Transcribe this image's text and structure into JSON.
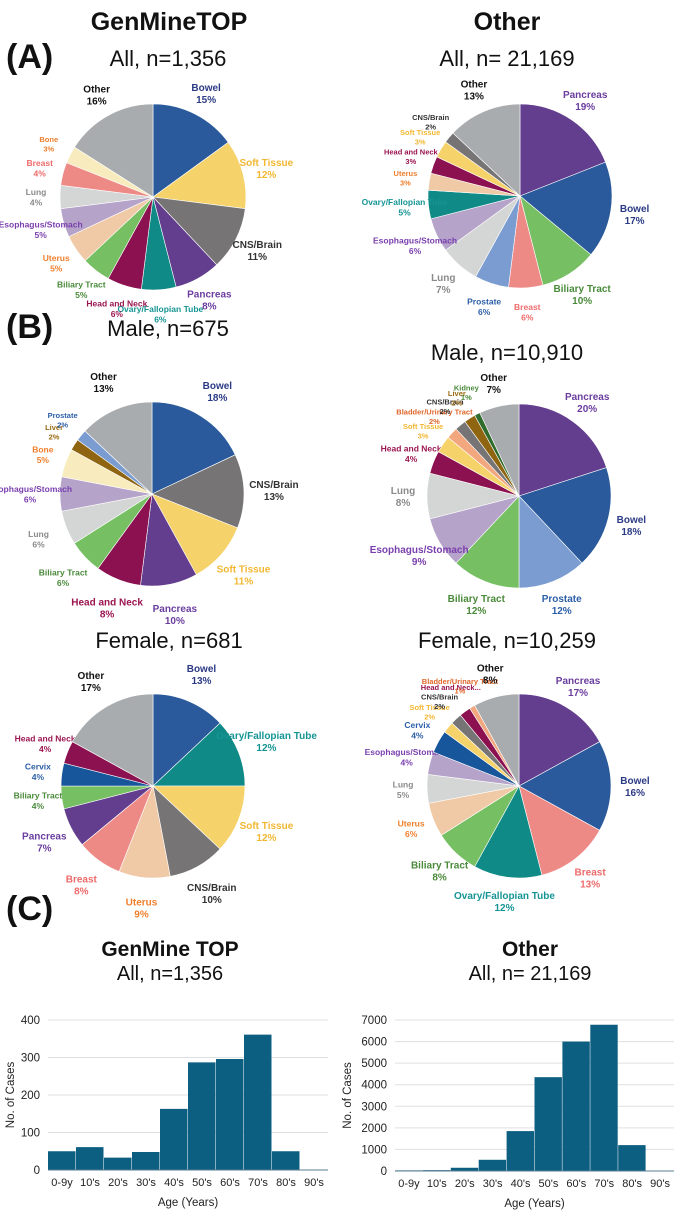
{
  "headers": {
    "left": "GenMineTOP",
    "right": "Other",
    "panel_a": "(A)",
    "panel_b": "(B)",
    "panel_c": "(C)"
  },
  "colors": {
    "Bowel": "#2a5a9b",
    "Soft Tissue": "#f5d36a",
    "CNS/Brain": "#767474",
    "Pancreas": "#633d8e",
    "Ovary/Fallopian Tube": "#0f8a86",
    "Head and Neck": "#8b1150",
    "Biliary Tract": "#76bf63",
    "Uterus": "#f0c9a6",
    "Esophagus/Stomach": "#b5a3c9",
    "Lung": "#d4d5d5",
    "Breast": "#ee8a86",
    "Bone": "#f8ecbe",
    "Other": "#a9acae",
    "Prostate": "#7a9cd0",
    "Liver": "#8f6511",
    "Kidney": "#2e6b2c",
    "Bladder/Urinary Tract": "#f2a77e",
    "Cervix": "#17569a",
    "bar": "#0d5f82"
  },
  "label_colors": {
    "Bowel": "#2c3b85",
    "Soft Tissue": "#f2b732",
    "CNS/Brain": "#333333",
    "Pancreas": "#6a3d9e",
    "Ovary/Fallopian Tube": "#169494",
    "Head and Neck": "#9a1550",
    "Biliary Tract": "#4a8a3a",
    "Uterus": "#ef7f2c",
    "Esophagus/Stomach": "#7a3fae",
    "Lung": "#8a8a8a",
    "Breast": "#ee6a6a",
    "Bone": "#ef7f2c",
    "Other": "#111111",
    "Prostate": "#2c5fa8",
    "Liver": "#9a6a12",
    "Kidney": "#4a8a3a",
    "Bladder/Urinary Tract": "#e0662a",
    "Cervix": "#2c5fa8"
  },
  "chart_data": [
    {
      "type": "pie",
      "id": "genmine-all",
      "title": "All, n=1,356",
      "slices": [
        {
          "label": "Bowel",
          "value": 15
        },
        {
          "label": "Soft Tissue",
          "value": 12
        },
        {
          "label": "CNS/Brain",
          "value": 11
        },
        {
          "label": "Pancreas",
          "value": 8
        },
        {
          "label": "Ovary/Fallopian Tube",
          "value": 6
        },
        {
          "label": "Head and Neck",
          "value": 6
        },
        {
          "label": "Biliary Tract",
          "value": 5
        },
        {
          "label": "Uterus",
          "value": 5
        },
        {
          "label": "Esophagus/Stomach",
          "value": 5
        },
        {
          "label": "Lung",
          "value": 4
        },
        {
          "label": "Breast",
          "value": 4
        },
        {
          "label": "Bone",
          "value": 3
        },
        {
          "label": "Other",
          "value": 16
        }
      ]
    },
    {
      "type": "pie",
      "id": "other-all",
      "title": "All, n= 21,169",
      "slices": [
        {
          "label": "Pancreas",
          "value": 19
        },
        {
          "label": "Bowel",
          "value": 17
        },
        {
          "label": "Biliary Tract",
          "value": 10
        },
        {
          "label": "Breast",
          "value": 6
        },
        {
          "label": "Prostate",
          "value": 6
        },
        {
          "label": "Lung",
          "value": 7
        },
        {
          "label": "Esophagus/Stomach",
          "value": 6
        },
        {
          "label": "Ovary/Fallopian Tube",
          "value": 5
        },
        {
          "label": "Uterus",
          "value": 3
        },
        {
          "label": "Head and Neck",
          "value": 3
        },
        {
          "label": "Soft Tissue",
          "value": 3
        },
        {
          "label": "CNS/Brain",
          "value": 2
        },
        {
          "label": "Other",
          "value": 13
        }
      ]
    },
    {
      "type": "pie",
      "id": "genmine-male",
      "title": "Male, n=675",
      "slices": [
        {
          "label": "Bowel",
          "value": 18
        },
        {
          "label": "CNS/Brain",
          "value": 13
        },
        {
          "label": "Soft Tissue",
          "value": 11
        },
        {
          "label": "Pancreas",
          "value": 10
        },
        {
          "label": "Head and Neck",
          "value": 8
        },
        {
          "label": "Biliary Tract",
          "value": 6
        },
        {
          "label": "Lung",
          "value": 6
        },
        {
          "label": "Esophagus/Stomach",
          "value": 6
        },
        {
          "label": "Bone",
          "value": 5
        },
        {
          "label": "Liver",
          "value": 2
        },
        {
          "label": "Prostate",
          "value": 2
        },
        {
          "label": "Other",
          "value": 13
        }
      ]
    },
    {
      "type": "pie",
      "id": "other-male",
      "title": "Male, n=10,910",
      "slices": [
        {
          "label": "Pancreas",
          "value": 20
        },
        {
          "label": "Bowel",
          "value": 18
        },
        {
          "label": "Prostate",
          "value": 12
        },
        {
          "label": "Biliary Tract",
          "value": 12
        },
        {
          "label": "Esophagus/Stomach",
          "value": 9
        },
        {
          "label": "Lung",
          "value": 8
        },
        {
          "label": "Head and Neck",
          "value": 4
        },
        {
          "label": "Soft Tissue",
          "value": 3
        },
        {
          "label": "Bladder/Urinary Tract",
          "value": 2
        },
        {
          "label": "CNS/Brain",
          "value": 2
        },
        {
          "label": "Liver",
          "value": 2
        },
        {
          "label": "Kidney",
          "value": 1
        },
        {
          "label": "Other",
          "value": 7
        }
      ]
    },
    {
      "type": "pie",
      "id": "genmine-female",
      "title": "Female, n=681",
      "slices": [
        {
          "label": "Bowel",
          "value": 13
        },
        {
          "label": "Ovary/Fallopian Tube",
          "value": 12
        },
        {
          "label": "Soft Tissue",
          "value": 12
        },
        {
          "label": "CNS/Brain",
          "value": 10
        },
        {
          "label": "Uterus",
          "value": 9
        },
        {
          "label": "Breast",
          "value": 8
        },
        {
          "label": "Pancreas",
          "value": 7
        },
        {
          "label": "Biliary Tract",
          "value": 4
        },
        {
          "label": "Cervix",
          "value": 4
        },
        {
          "label": "Head and Neck",
          "value": 4
        },
        {
          "label": "Other",
          "value": 17
        }
      ]
    },
    {
      "type": "pie",
      "id": "other-female",
      "title": "Female, n=10,259",
      "slices": [
        {
          "label": "Pancreas",
          "value": 17
        },
        {
          "label": "Bowel",
          "value": 16
        },
        {
          "label": "Breast",
          "value": 13
        },
        {
          "label": "Ovary/Fallopian Tube",
          "value": 12
        },
        {
          "label": "Biliary Tract",
          "value": 8
        },
        {
          "label": "Uterus",
          "value": 6
        },
        {
          "label": "Lung",
          "value": 5
        },
        {
          "label": "Esophagus/Stomach",
          "value": 4
        },
        {
          "label": "Cervix",
          "value": 4
        },
        {
          "label": "Soft Tissue",
          "value": 2
        },
        {
          "label": "CNS/Brain",
          "value": 2
        },
        {
          "label": "Head and Neck",
          "value": 2,
          "display": "Head and Neck...",
          "hide_pct": true
        },
        {
          "label": "Bladder/Urinary Tract",
          "value": 1
        },
        {
          "label": "Other",
          "value": 8
        }
      ]
    },
    {
      "type": "bar",
      "id": "genmine-age",
      "title": "GenMine TOP",
      "subtitle": "All, n=1,356",
      "categories": [
        "0-9y",
        "10's",
        "20's",
        "30's",
        "40's",
        "50's",
        "60's",
        "70's",
        "80's",
        "90's"
      ],
      "values": [
        50,
        61,
        33,
        48,
        163,
        287,
        296,
        361,
        50,
        1
      ],
      "xlabel": "Age (Years)",
      "ylabel": "No. of Cases",
      "ylim": [
        0,
        400
      ],
      "yticks": [
        0,
        100,
        200,
        300,
        400
      ],
      "grid": true
    },
    {
      "type": "bar",
      "id": "other-age",
      "title": "Other",
      "subtitle": "All, n= 21,169",
      "categories": [
        "0-9y",
        "10's",
        "20's",
        "30's",
        "40's",
        "50's",
        "60's",
        "70's",
        "80's",
        "90's"
      ],
      "values": [
        30,
        40,
        150,
        520,
        1850,
        4350,
        6000,
        6780,
        1200,
        20
      ],
      "xlabel": "Age (Years)",
      "ylabel": "No. of Cases",
      "ylim": [
        0,
        7000
      ],
      "yticks": [
        0,
        1000,
        2000,
        3000,
        4000,
        5000,
        6000,
        7000
      ],
      "grid": true
    }
  ]
}
